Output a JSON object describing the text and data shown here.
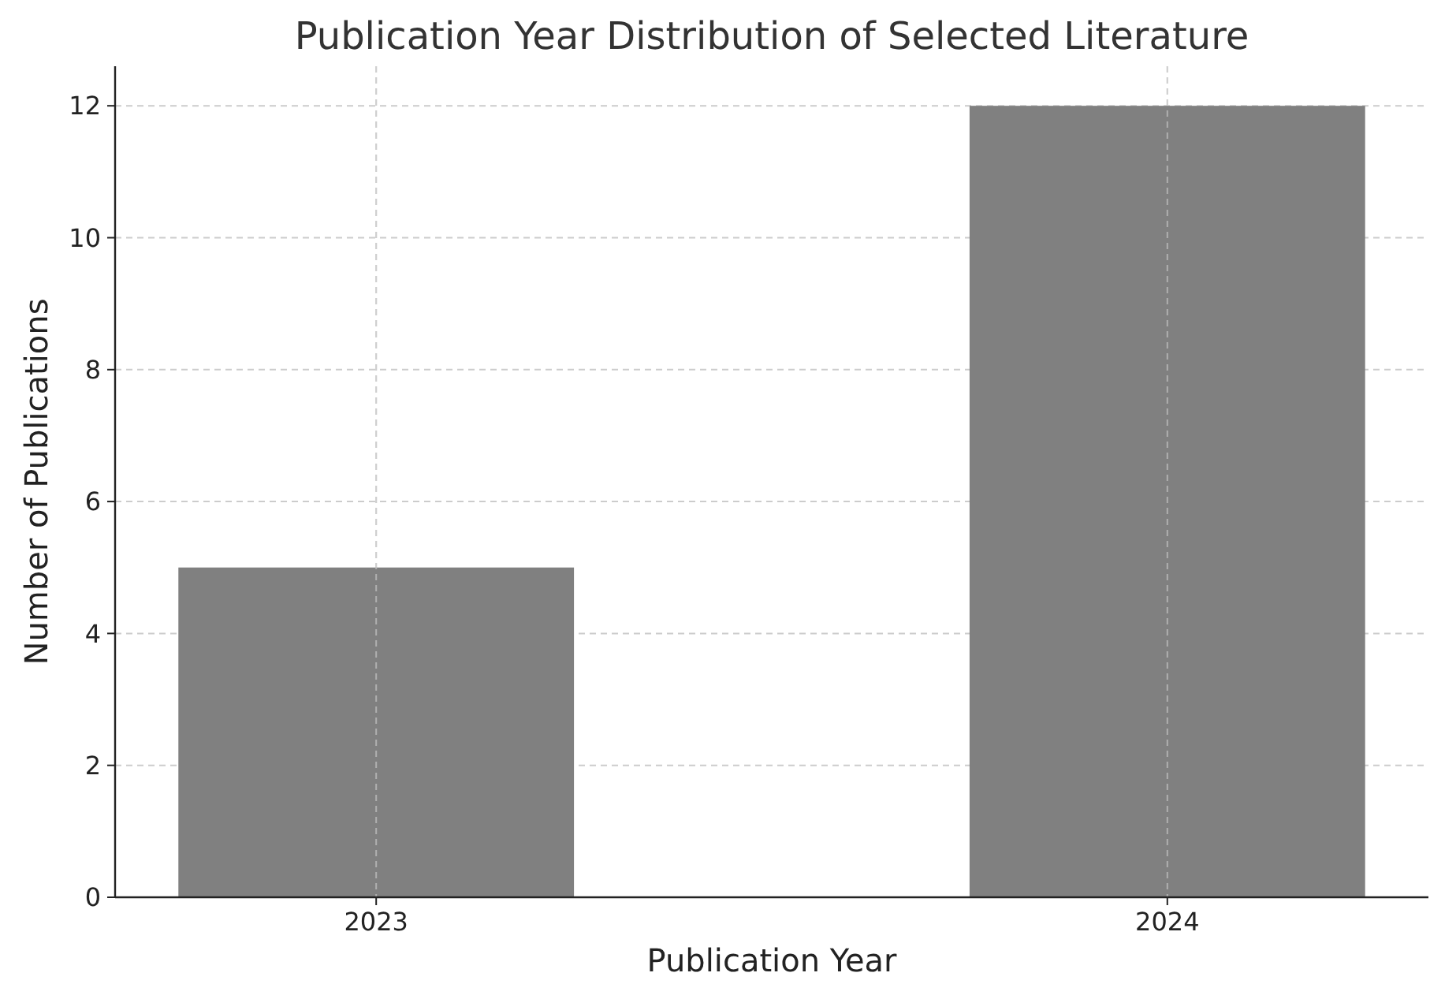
{
  "chart_data": {
    "type": "bar",
    "title": "Publication Year Distribution of Selected Literature",
    "xlabel": "Publication Year",
    "ylabel": "Number of Publications",
    "categories": [
      "2023",
      "2024"
    ],
    "values": [
      5,
      12
    ],
    "color": "#808080",
    "ylim": [
      0,
      12.6
    ],
    "yticks": [
      0,
      2,
      4,
      6,
      8,
      10,
      12
    ],
    "grid": true
  }
}
